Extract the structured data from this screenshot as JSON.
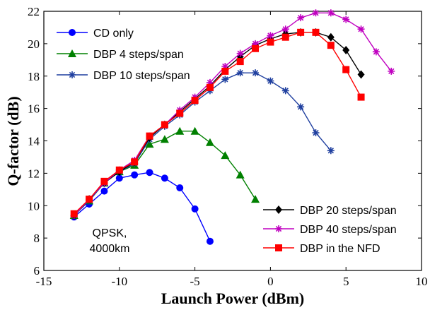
{
  "chart_data": {
    "type": "line",
    "xlabel": "Launch Power (dBm)",
    "ylabel": "Q-factor (dB)",
    "xlim": [
      -15,
      10
    ],
    "ylim": [
      6,
      22
    ],
    "xticks": [
      "-15",
      "-10",
      "-5",
      "0",
      "5",
      "10"
    ],
    "yticks": [
      "6",
      "8",
      "10",
      "12",
      "14",
      "16",
      "18",
      "20",
      "22"
    ],
    "xtick_values": [
      -15,
      -10,
      -5,
      0,
      5,
      10
    ],
    "ytick_values": [
      6,
      8,
      10,
      12,
      14,
      16,
      18,
      20,
      22
    ],
    "grid": false,
    "annotation": [
      "QPSK,",
      "4000km"
    ],
    "legend_top_left": [
      "CD only",
      "DBP 4 steps/span",
      "DBP 10 steps/span"
    ],
    "legend_bottom_right": [
      "DBP 20 steps/span",
      "DBP 40 steps/span",
      "DBP in the NFD"
    ],
    "series": [
      {
        "name": "CD only",
        "color": "#0000ff",
        "marker": "circle",
        "x": [
          -13,
          -12,
          -11,
          -10,
          -9,
          -8,
          -7,
          -6,
          -5,
          -4
        ],
        "y": [
          9.3,
          10.1,
          10.9,
          11.7,
          11.9,
          12.05,
          11.7,
          11.1,
          9.8,
          7.8
        ]
      },
      {
        "name": "DBP 4 steps/span",
        "color": "#008000",
        "marker": "triangle",
        "x": [
          -13,
          -12,
          -11,
          -10,
          -9,
          -8,
          -7,
          -6,
          -5,
          -4,
          -3,
          -2,
          -1
        ],
        "y": [
          9.4,
          10.3,
          11.4,
          12.1,
          12.5,
          13.8,
          14.1,
          14.6,
          14.6,
          13.9,
          13.1,
          11.9,
          10.4
        ]
      },
      {
        "name": "DBP 10 steps/span",
        "color": "#1f3f9f",
        "marker": "star",
        "x": [
          -13,
          -12,
          -11,
          -10,
          -9,
          -8,
          -7,
          -6,
          -5,
          -4,
          -3,
          -2,
          -1,
          0,
          1,
          2,
          3,
          4
        ],
        "y": [
          9.4,
          10.3,
          11.4,
          12.1,
          12.6,
          14.1,
          14.9,
          15.6,
          16.4,
          17.1,
          17.8,
          18.2,
          18.2,
          17.7,
          17.1,
          16.1,
          14.5,
          13.4
        ]
      },
      {
        "name": "DBP 20 steps/span",
        "color": "#000000",
        "marker": "diamond",
        "x": [
          -13,
          -12,
          -11,
          -10,
          -9,
          -8,
          -7,
          -6,
          -5,
          -4,
          -3,
          -2,
          -1,
          0,
          1,
          2,
          3,
          4,
          5,
          6
        ],
        "y": [
          9.4,
          10.4,
          11.4,
          12.1,
          12.7,
          14.2,
          15.0,
          15.8,
          16.6,
          17.4,
          18.4,
          19.2,
          19.9,
          20.3,
          20.6,
          20.7,
          20.7,
          20.4,
          19.6,
          18.1
        ]
      },
      {
        "name": "DBP 40 steps/span",
        "color": "#c000c0",
        "marker": "star",
        "x": [
          -13,
          -12,
          -11,
          -10,
          -9,
          -8,
          -7,
          -6,
          -5,
          -4,
          -3,
          -2,
          -1,
          0,
          1,
          2,
          3,
          4,
          5,
          6,
          7,
          8
        ],
        "y": [
          9.4,
          10.4,
          11.4,
          12.2,
          12.8,
          14.3,
          15.0,
          15.9,
          16.7,
          17.6,
          18.6,
          19.4,
          20.0,
          20.5,
          20.9,
          21.6,
          21.9,
          21.9,
          21.5,
          20.9,
          19.5,
          18.3
        ]
      },
      {
        "name": "DBP in the NFD",
        "color": "#ff0000",
        "marker": "square",
        "x": [
          -13,
          -12,
          -11,
          -10,
          -9,
          -8,
          -7,
          -6,
          -5,
          -4,
          -3,
          -2,
          -1,
          0,
          1,
          2,
          3,
          4,
          5,
          6
        ],
        "y": [
          9.5,
          10.4,
          11.5,
          12.2,
          12.7,
          14.3,
          15.0,
          15.7,
          16.5,
          17.3,
          18.3,
          18.9,
          19.7,
          20.1,
          20.4,
          20.7,
          20.7,
          19.9,
          18.4,
          16.7
        ]
      }
    ]
  }
}
